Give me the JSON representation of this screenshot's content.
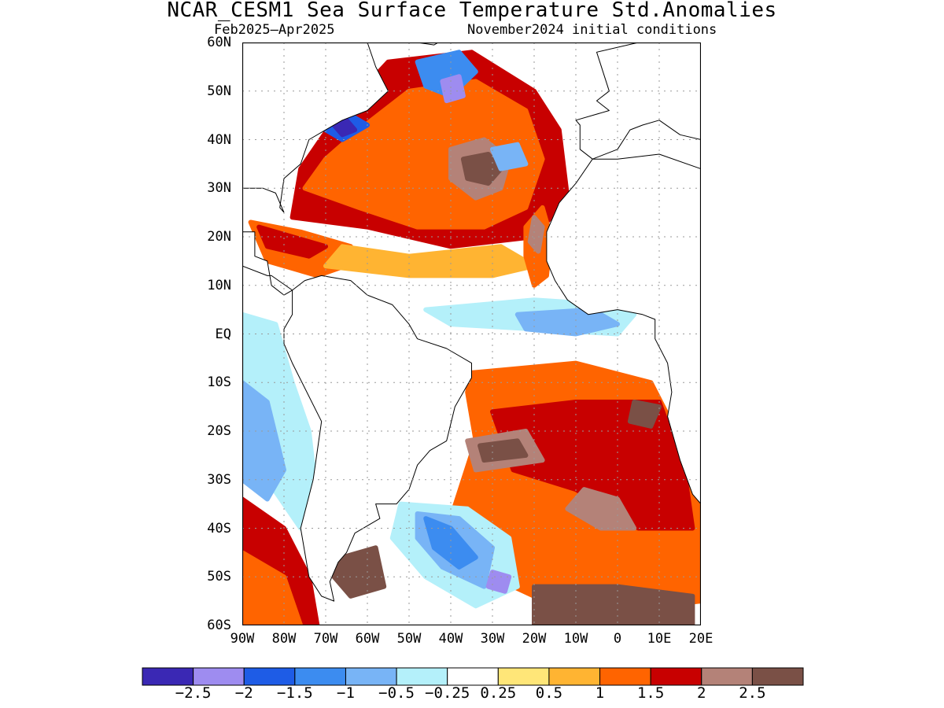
{
  "title": "NCAR_CESM1 Sea Surface Temperature Std.Anomalies",
  "subtitle_left": "Feb2025–Apr2025",
  "subtitle_right": "November2024 initial conditions",
  "lat_labels": [
    "60N",
    "50N",
    "40N",
    "30N",
    "20N",
    "10N",
    "EQ",
    "10S",
    "20S",
    "30S",
    "40S",
    "50S",
    "60S"
  ],
  "lon_labels": [
    "90W",
    "80W",
    "70W",
    "60W",
    "50W",
    "40W",
    "30W",
    "20W",
    "10W",
    "0",
    "10E",
    "20E"
  ],
  "colorbar": {
    "labels": [
      "−2.5",
      "−2",
      "−1.5",
      "−1",
      "−0.5",
      "−0.25",
      "0.25",
      "0.5",
      "1",
      "1.5",
      "2",
      "2.5"
    ],
    "colors": [
      "#3a28b4",
      "#9e8cf0",
      "#1e5ce6",
      "#3c8cf0",
      "#78b4f6",
      "#b4f0fa",
      "#ffffff",
      "#ffe678",
      "#ffb432",
      "#ff6400",
      "#c80000",
      "#b48278",
      "#7a5046"
    ]
  },
  "map": {
    "lat_range": [
      -60,
      60
    ],
    "lon_range": [
      -90,
      20
    ],
    "ocean_color": "#ffffff",
    "anomaly_regions": [
      {
        "level": 10,
        "pts": [
          [
            -78,
            24
          ],
          [
            -60,
            22
          ],
          [
            -40,
            18
          ],
          [
            -20,
            20
          ],
          [
            -12,
            28
          ],
          [
            -14,
            42
          ],
          [
            -20,
            50
          ],
          [
            -35,
            58
          ],
          [
            -55,
            56
          ],
          [
            -68,
            44
          ],
          [
            -76,
            34
          ]
        ]
      },
      {
        "level": 9,
        "pts": [
          [
            -75,
            30
          ],
          [
            -62,
            26
          ],
          [
            -48,
            22
          ],
          [
            -32,
            22
          ],
          [
            -22,
            26
          ],
          [
            -18,
            36
          ],
          [
            -22,
            46
          ],
          [
            -34,
            52
          ],
          [
            -50,
            50
          ],
          [
            -62,
            42
          ],
          [
            -70,
            36
          ]
        ]
      },
      {
        "level": 11,
        "pts": [
          [
            -40,
            38
          ],
          [
            -32,
            40
          ],
          [
            -26,
            36
          ],
          [
            -28,
            30
          ],
          [
            -34,
            28
          ],
          [
            -40,
            32
          ]
        ]
      },
      {
        "level": 12,
        "pts": [
          [
            -37,
            36
          ],
          [
            -31,
            37
          ],
          [
            -28,
            34
          ],
          [
            -31,
            31
          ],
          [
            -36,
            32
          ]
        ]
      },
      {
        "level": 9,
        "pts": [
          [
            -88,
            23
          ],
          [
            -76,
            21
          ],
          [
            -64,
            18
          ],
          [
            -62,
            15
          ],
          [
            -72,
            12
          ],
          [
            -84,
            15
          ]
        ]
      },
      {
        "level": 10,
        "pts": [
          [
            -86,
            22
          ],
          [
            -78,
            20
          ],
          [
            -70,
            18
          ],
          [
            -74,
            16
          ],
          [
            -84,
            18
          ]
        ]
      },
      {
        "level": 8,
        "pts": [
          [
            -70,
            14
          ],
          [
            -50,
            12
          ],
          [
            -30,
            12
          ],
          [
            -20,
            14
          ],
          [
            -28,
            18
          ],
          [
            -50,
            16
          ],
          [
            -66,
            18
          ]
        ]
      },
      {
        "level": 9,
        "pts": [
          [
            -22,
            22
          ],
          [
            -18,
            26
          ],
          [
            -16,
            20
          ],
          [
            -17,
            12
          ],
          [
            -20,
            10
          ],
          [
            -22,
            16
          ]
        ]
      },
      {
        "level": 11,
        "pts": [
          [
            -20,
            24
          ],
          [
            -18,
            22
          ],
          [
            -19,
            17
          ],
          [
            -21,
            19
          ]
        ]
      },
      {
        "level": 2,
        "pts": [
          [
            -70,
            42
          ],
          [
            -64,
            45
          ],
          [
            -60,
            43
          ],
          [
            -66,
            40
          ]
        ]
      },
      {
        "level": 0,
        "pts": [
          [
            -68,
            43
          ],
          [
            -65,
            44
          ],
          [
            -63,
            42
          ],
          [
            -66,
            41
          ]
        ]
      },
      {
        "level": 3,
        "pts": [
          [
            -48,
            56
          ],
          [
            -38,
            58
          ],
          [
            -34,
            54
          ],
          [
            -40,
            49
          ],
          [
            -46,
            51
          ]
        ]
      },
      {
        "level": 1,
        "pts": [
          [
            -42,
            52
          ],
          [
            -38,
            53
          ],
          [
            -37,
            49
          ],
          [
            -41,
            48
          ]
        ]
      },
      {
        "level": 4,
        "pts": [
          [
            -30,
            38
          ],
          [
            -24,
            39
          ],
          [
            -22,
            35
          ],
          [
            -28,
            34
          ]
        ]
      },
      {
        "level": 5,
        "pts": [
          [
            -46,
            5
          ],
          [
            -20,
            7
          ],
          [
            -2,
            6
          ],
          [
            4,
            4
          ],
          [
            0,
            0
          ],
          [
            -20,
            1
          ],
          [
            -40,
            2
          ]
        ]
      },
      {
        "level": 4,
        "pts": [
          [
            -24,
            4
          ],
          [
            -6,
            5
          ],
          [
            0,
            2
          ],
          [
            -10,
            0
          ],
          [
            -22,
            1
          ]
        ]
      },
      {
        "level": 5,
        "pts": [
          [
            -90,
            4
          ],
          [
            -82,
            2
          ],
          [
            -78,
            -10
          ],
          [
            -74,
            -20
          ],
          [
            -72,
            -35
          ],
          [
            -76,
            -40
          ],
          [
            -84,
            -30
          ],
          [
            -90,
            -20
          ]
        ]
      },
      {
        "level": 4,
        "pts": [
          [
            -90,
            -10
          ],
          [
            -84,
            -14
          ],
          [
            -80,
            -28
          ],
          [
            -84,
            -34
          ],
          [
            -90,
            -30
          ]
        ]
      },
      {
        "level": 9,
        "pts": [
          [
            -35,
            -8
          ],
          [
            -10,
            -6
          ],
          [
            8,
            -10
          ],
          [
            14,
            -20
          ],
          [
            20,
            -35
          ],
          [
            20,
            -55
          ],
          [
            -10,
            -58
          ],
          [
            -30,
            -50
          ],
          [
            -40,
            -38
          ],
          [
            -34,
            -22
          ],
          [
            -36,
            -12
          ]
        ]
      },
      {
        "level": 10,
        "pts": [
          [
            -30,
            -16
          ],
          [
            -10,
            -14
          ],
          [
            10,
            -14
          ],
          [
            16,
            -28
          ],
          [
            18,
            -40
          ],
          [
            5,
            -40
          ],
          [
            -10,
            -32
          ],
          [
            -25,
            -28
          ]
        ]
      },
      {
        "level": 11,
        "pts": [
          [
            -36,
            -22
          ],
          [
            -22,
            -20
          ],
          [
            -18,
            -26
          ],
          [
            -34,
            -28
          ]
        ]
      },
      {
        "level": 12,
        "pts": [
          [
            -33,
            -23
          ],
          [
            -24,
            -22
          ],
          [
            -22,
            -25
          ],
          [
            -32,
            -26
          ]
        ]
      },
      {
        "level": 11,
        "pts": [
          [
            -8,
            -32
          ],
          [
            0,
            -34
          ],
          [
            4,
            -40
          ],
          [
            -4,
            -40
          ],
          [
            -12,
            -36
          ]
        ]
      },
      {
        "level": 12,
        "pts": [
          [
            4,
            -14
          ],
          [
            10,
            -15
          ],
          [
            8,
            -19
          ],
          [
            3,
            -18
          ]
        ]
      },
      {
        "level": 12,
        "pts": [
          [
            -20,
            -52
          ],
          [
            0,
            -52
          ],
          [
            18,
            -54
          ],
          [
            18,
            -60
          ],
          [
            -20,
            -60
          ]
        ]
      },
      {
        "level": 12,
        "pts": [
          [
            -66,
            -46
          ],
          [
            -58,
            -44
          ],
          [
            -56,
            -52
          ],
          [
            -64,
            -54
          ],
          [
            -68,
            -50
          ]
        ]
      },
      {
        "level": 5,
        "pts": [
          [
            -52,
            -35
          ],
          [
            -36,
            -36
          ],
          [
            -26,
            -42
          ],
          [
            -24,
            -52
          ],
          [
            -34,
            -56
          ],
          [
            -46,
            -50
          ],
          [
            -54,
            -42
          ]
        ]
      },
      {
        "level": 4,
        "pts": [
          [
            -48,
            -37
          ],
          [
            -38,
            -38
          ],
          [
            -30,
            -44
          ],
          [
            -32,
            -52
          ],
          [
            -42,
            -48
          ],
          [
            -48,
            -42
          ]
        ]
      },
      {
        "level": 3,
        "pts": [
          [
            -46,
            -38
          ],
          [
            -40,
            -40
          ],
          [
            -34,
            -46
          ],
          [
            -38,
            -48
          ],
          [
            -44,
            -44
          ]
        ]
      },
      {
        "level": 1,
        "pts": [
          [
            -30,
            -49
          ],
          [
            -26,
            -50
          ],
          [
            -27,
            -53
          ],
          [
            -31,
            -52
          ]
        ]
      },
      {
        "level": 10,
        "pts": [
          [
            -90,
            -34
          ],
          [
            -80,
            -40
          ],
          [
            -74,
            -50
          ],
          [
            -72,
            -60
          ],
          [
            -90,
            -60
          ]
        ]
      },
      {
        "level": 9,
        "pts": [
          [
            -90,
            -45
          ],
          [
            -80,
            -50
          ],
          [
            -76,
            -60
          ],
          [
            -90,
            -60
          ]
        ]
      }
    ],
    "land_polygons": [
      {
        "name": "north-america",
        "pts": [
          [
            -90,
            60
          ],
          [
            -60,
            60
          ],
          [
            -58,
            55
          ],
          [
            -55,
            50
          ],
          [
            -60,
            46
          ],
          [
            -66,
            44
          ],
          [
            -70,
            42
          ],
          [
            -74,
            40
          ],
          [
            -76,
            35
          ],
          [
            -80,
            32
          ],
          [
            -81,
            26
          ],
          [
            -80,
            25
          ],
          [
            -82,
            29
          ],
          [
            -85,
            30
          ],
          [
            -90,
            30
          ]
        ]
      },
      {
        "name": "central-america",
        "pts": [
          [
            -90,
            30
          ],
          [
            -90,
            21
          ],
          [
            -87,
            21
          ],
          [
            -87,
            16
          ],
          [
            -84,
            15
          ],
          [
            -83,
            10
          ],
          [
            -80,
            8
          ],
          [
            -78,
            9
          ],
          [
            -83,
            12
          ],
          [
            -84,
            12
          ],
          [
            -90,
            14
          ]
        ]
      },
      {
        "name": "south-america",
        "pts": [
          [
            -78,
            9
          ],
          [
            -75,
            11
          ],
          [
            -71,
            12
          ],
          [
            -64,
            11
          ],
          [
            -60,
            8
          ],
          [
            -54,
            6
          ],
          [
            -50,
            2
          ],
          [
            -48,
            -1
          ],
          [
            -41,
            -3
          ],
          [
            -35,
            -6
          ],
          [
            -35,
            -9
          ],
          [
            -39,
            -15
          ],
          [
            -41,
            -22
          ],
          [
            -45,
            -24
          ],
          [
            -48,
            -27
          ],
          [
            -50,
            -32
          ],
          [
            -53,
            -35
          ],
          [
            -58,
            -35
          ],
          [
            -57,
            -38
          ],
          [
            -63,
            -41
          ],
          [
            -65,
            -45
          ],
          [
            -67,
            -47
          ],
          [
            -69,
            -51
          ],
          [
            -68,
            -55
          ],
          [
            -71,
            -54
          ],
          [
            -74,
            -50
          ],
          [
            -76,
            -40
          ],
          [
            -73,
            -30
          ],
          [
            -71,
            -18
          ],
          [
            -78,
            -6
          ],
          [
            -80,
            -2
          ],
          [
            -80,
            1
          ],
          [
            -78,
            4
          ]
        ]
      },
      {
        "name": "africa",
        "pts": [
          [
            -6,
            36
          ],
          [
            -10,
            31
          ],
          [
            -14,
            27
          ],
          [
            -17,
            21
          ],
          [
            -17,
            15
          ],
          [
            -15,
            11
          ],
          [
            -12,
            7
          ],
          [
            -7,
            4
          ],
          [
            0,
            5
          ],
          [
            6,
            4
          ],
          [
            9,
            3
          ],
          [
            9,
            -1
          ],
          [
            12,
            -6
          ],
          [
            13,
            -12
          ],
          [
            12,
            -17
          ],
          [
            15,
            -26
          ],
          [
            18,
            -33
          ],
          [
            20,
            -35
          ],
          [
            20,
            34
          ],
          [
            10,
            37
          ],
          [
            0,
            36
          ]
        ]
      },
      {
        "name": "europe",
        "pts": [
          [
            -10,
            44
          ],
          [
            -9,
            43
          ],
          [
            -9,
            38
          ],
          [
            -6,
            36
          ],
          [
            0,
            38
          ],
          [
            3,
            42
          ],
          [
            6,
            43
          ],
          [
            10,
            44
          ],
          [
            15,
            41
          ],
          [
            20,
            40
          ],
          [
            20,
            60
          ],
          [
            5,
            60
          ],
          [
            -5,
            58
          ],
          [
            -2,
            50
          ],
          [
            -5,
            48
          ],
          [
            -2,
            46
          ]
        ]
      },
      {
        "name": "greenland-tip",
        "pts": [
          [
            -48,
            60
          ],
          [
            -43,
            60
          ],
          [
            -44,
            59.5
          ]
        ]
      }
    ],
    "land_color": "#ffffff",
    "coast_color": "#000000",
    "grid_step_lat": 10,
    "grid_step_lon": 10,
    "grid_color": "#9a9a9a"
  }
}
